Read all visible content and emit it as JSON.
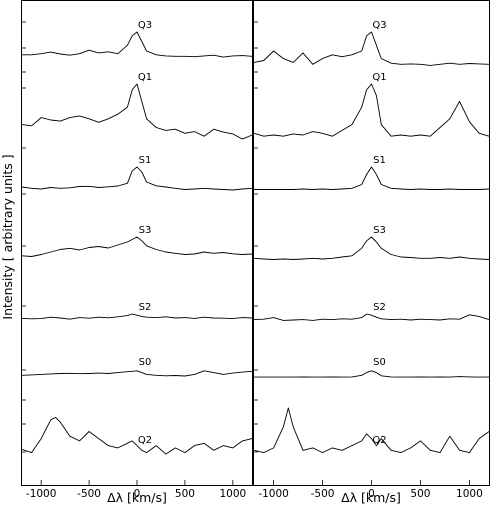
{
  "chart_data": {
    "type": "line",
    "ylabel": "Intensity [ arbitrary units ]",
    "xlim": [
      -1200,
      1200
    ],
    "panels": [
      {
        "xlabel": "Δλ [km/s]",
        "xticks": [
          -1000,
          -500,
          0,
          500,
          1000
        ],
        "series": [
          {
            "name": "Q3",
            "x": [
              -1200,
              -1100,
              -1000,
              -900,
              -800,
              -700,
              -600,
              -500,
              -400,
              -300,
              -200,
              -100,
              -50,
              0,
              50,
              100,
              200,
              300,
              400,
              500,
              600,
              700,
              800,
              900,
              1000,
              1100,
              1200
            ],
            "y": [
              0.4,
              0.4,
              0.43,
              0.47,
              0.42,
              0.39,
              0.43,
              0.52,
              0.45,
              0.48,
              0.43,
              0.65,
              0.9,
              1.0,
              0.75,
              0.5,
              0.4,
              0.37,
              0.36,
              0.36,
              0.35,
              0.37,
              0.39,
              0.34,
              0.37,
              0.38,
              0.36
            ]
          },
          {
            "name": "Q1",
            "x": [
              -1200,
              -1100,
              -1000,
              -900,
              -800,
              -700,
              -600,
              -500,
              -400,
              -300,
              -200,
              -100,
              -50,
              0,
              50,
              100,
              200,
              300,
              400,
              500,
              600,
              700,
              800,
              900,
              1000,
              1100,
              1200
            ],
            "y": [
              0.3,
              0.28,
              0.42,
              0.38,
              0.36,
              0.42,
              0.45,
              0.4,
              0.34,
              0.4,
              0.48,
              0.6,
              0.9,
              1.0,
              0.7,
              0.4,
              0.25,
              0.2,
              0.22,
              0.15,
              0.18,
              0.1,
              0.22,
              0.17,
              0.14,
              0.05,
              0.12
            ]
          },
          {
            "name": "S1",
            "x": [
              -1200,
              -1100,
              -1000,
              -900,
              -800,
              -700,
              -600,
              -500,
              -400,
              -300,
              -200,
              -100,
              -50,
              0,
              50,
              100,
              200,
              300,
              400,
              500,
              600,
              700,
              800,
              900,
              1000,
              1100,
              1200
            ],
            "y": [
              0.2,
              0.15,
              0.12,
              0.18,
              0.15,
              0.17,
              0.22,
              0.23,
              0.18,
              0.21,
              0.24,
              0.35,
              0.85,
              1.0,
              0.8,
              0.4,
              0.25,
              0.2,
              0.15,
              0.1,
              0.12,
              0.15,
              0.12,
              0.1,
              0.08,
              0.12,
              0.15
            ]
          },
          {
            "name": "S3",
            "x": [
              -1200,
              -1100,
              -1000,
              -900,
              -800,
              -700,
              -600,
              -500,
              -400,
              -300,
              -200,
              -100,
              -50,
              0,
              50,
              100,
              200,
              300,
              400,
              500,
              600,
              700,
              800,
              900,
              1000,
              1100,
              1200
            ],
            "y": [
              0.25,
              0.22,
              0.3,
              0.4,
              0.5,
              0.55,
              0.48,
              0.58,
              0.62,
              0.56,
              0.68,
              0.8,
              0.9,
              1.0,
              0.85,
              0.65,
              0.5,
              0.4,
              0.35,
              0.3,
              0.32,
              0.4,
              0.35,
              0.38,
              0.33,
              0.3,
              0.32
            ]
          },
          {
            "name": "S2",
            "x": [
              -1200,
              -1100,
              -1000,
              -900,
              -800,
              -700,
              -600,
              -500,
              -400,
              -300,
              -200,
              -100,
              -50,
              0,
              50,
              100,
              200,
              300,
              400,
              500,
              600,
              700,
              800,
              900,
              1000,
              1100,
              1200
            ],
            "y": [
              0.45,
              0.4,
              0.43,
              0.6,
              0.5,
              0.35,
              0.55,
              0.48,
              0.6,
              0.52,
              0.65,
              0.8,
              1.0,
              0.85,
              0.7,
              0.6,
              0.55,
              0.65,
              0.5,
              0.55,
              0.45,
              0.6,
              0.5,
              0.48,
              0.42,
              0.55,
              0.5
            ]
          },
          {
            "name": "S0",
            "x": [
              -1200,
              -1100,
              -1000,
              -900,
              -800,
              -700,
              -600,
              -500,
              -400,
              -300,
              -200,
              -100,
              -50,
              0,
              50,
              100,
              200,
              300,
              400,
              500,
              600,
              700,
              800,
              900,
              1000,
              1100,
              1200
            ],
            "y": [
              0.3,
              0.35,
              0.4,
              0.45,
              0.5,
              0.52,
              0.48,
              0.5,
              0.55,
              0.5,
              0.6,
              0.7,
              0.75,
              0.8,
              0.6,
              0.4,
              0.3,
              0.25,
              0.28,
              0.22,
              0.4,
              0.8,
              0.6,
              0.4,
              0.55,
              0.65,
              0.75
            ]
          },
          {
            "name": "Q2",
            "x": [
              -1200,
              -1100,
              -1000,
              -900,
              -850,
              -800,
              -700,
              -600,
              -500,
              -400,
              -300,
              -200,
              -100,
              -50,
              0,
              50,
              100,
              200,
              300,
              400,
              500,
              600,
              700,
              800,
              900,
              1000,
              1100,
              1200
            ],
            "y": [
              0.12,
              0.05,
              0.35,
              0.75,
              0.8,
              0.7,
              0.4,
              0.3,
              0.5,
              0.35,
              0.2,
              0.15,
              0.25,
              0.3,
              0.2,
              0.1,
              0.05,
              0.2,
              0.02,
              0.15,
              0.05,
              0.2,
              0.25,
              0.1,
              0.2,
              0.15,
              0.3,
              0.35
            ]
          }
        ]
      },
      {
        "xlabel": "Δλ [km/s]",
        "xticks": [
          -1000,
          -500,
          0,
          500,
          1000
        ],
        "series": [
          {
            "name": "Q3",
            "x": [
              -1200,
              -1100,
              -1000,
              -900,
              -800,
              -700,
              -600,
              -500,
              -400,
              -300,
              -200,
              -100,
              -50,
              0,
              50,
              100,
              200,
              300,
              400,
              500,
              600,
              700,
              800,
              900,
              1000,
              1100,
              1200
            ],
            "y": [
              0.2,
              0.25,
              0.5,
              0.3,
              0.2,
              0.45,
              0.15,
              0.3,
              0.4,
              0.35,
              0.4,
              0.5,
              0.9,
              1.0,
              0.65,
              0.3,
              0.18,
              0.15,
              0.16,
              0.15,
              0.12,
              0.15,
              0.18,
              0.15,
              0.17,
              0.16,
              0.15
            ]
          },
          {
            "name": "Q1",
            "x": [
              -1200,
              -1100,
              -1000,
              -900,
              -800,
              -700,
              -600,
              -500,
              -400,
              -300,
              -200,
              -100,
              -50,
              0,
              50,
              100,
              200,
              300,
              400,
              500,
              600,
              700,
              800,
              900,
              1000,
              1100,
              1200
            ],
            "y": [
              0.15,
              0.1,
              0.12,
              0.1,
              0.14,
              0.12,
              0.18,
              0.15,
              0.1,
              0.2,
              0.3,
              0.6,
              0.9,
              1.0,
              0.8,
              0.3,
              0.1,
              0.12,
              0.1,
              0.12,
              0.1,
              0.25,
              0.4,
              0.7,
              0.35,
              0.15,
              0.1
            ]
          },
          {
            "name": "S1",
            "x": [
              -1200,
              -1100,
              -1000,
              -900,
              -800,
              -700,
              -600,
              -500,
              -400,
              -300,
              -200,
              -100,
              -50,
              0,
              50,
              100,
              200,
              300,
              400,
              500,
              600,
              700,
              800,
              900,
              1000,
              1100,
              1200
            ],
            "y": [
              0.1,
              0.1,
              0.1,
              0.1,
              0.1,
              0.12,
              0.1,
              0.12,
              0.1,
              0.12,
              0.15,
              0.3,
              0.7,
              1.0,
              0.7,
              0.3,
              0.15,
              0.12,
              0.1,
              0.12,
              0.1,
              0.1,
              0.12,
              0.1,
              0.1,
              0.1,
              0.12
            ]
          },
          {
            "name": "S3",
            "x": [
              -1200,
              -1100,
              -1000,
              -900,
              -800,
              -700,
              -600,
              -500,
              -400,
              -300,
              -200,
              -100,
              -50,
              0,
              50,
              100,
              200,
              300,
              400,
              500,
              600,
              700,
              800,
              900,
              1000,
              1100,
              1200
            ],
            "y": [
              0.15,
              0.12,
              0.1,
              0.12,
              0.1,
              0.12,
              0.15,
              0.12,
              0.15,
              0.2,
              0.25,
              0.55,
              0.85,
              1.0,
              0.8,
              0.55,
              0.3,
              0.2,
              0.18,
              0.15,
              0.15,
              0.18,
              0.15,
              0.2,
              0.15,
              0.12,
              0.1
            ]
          },
          {
            "name": "S2",
            "x": [
              -1200,
              -1100,
              -1000,
              -900,
              -800,
              -700,
              -600,
              -500,
              -400,
              -300,
              -200,
              -100,
              -50,
              0,
              50,
              100,
              200,
              300,
              400,
              500,
              600,
              700,
              800,
              900,
              1000,
              1100,
              1200
            ],
            "y": [
              0.3,
              0.35,
              0.55,
              0.2,
              0.25,
              0.3,
              0.2,
              0.35,
              0.3,
              0.4,
              0.35,
              0.55,
              1.0,
              0.85,
              0.6,
              0.4,
              0.3,
              0.35,
              0.25,
              0.35,
              0.3,
              0.25,
              0.4,
              0.35,
              0.9,
              0.7,
              0.3
            ]
          },
          {
            "name": "S0",
            "x": [
              -1200,
              -1100,
              -1000,
              -900,
              -800,
              -700,
              -600,
              -500,
              -400,
              -300,
              -200,
              -100,
              -50,
              0,
              50,
              100,
              200,
              300,
              400,
              500,
              600,
              700,
              800,
              900,
              1000,
              1100,
              1200
            ],
            "y": [
              0.1,
              0.1,
              0.1,
              0.1,
              0.1,
              0.12,
              0.1,
              0.1,
              0.12,
              0.1,
              0.12,
              0.3,
              0.6,
              0.8,
              0.6,
              0.25,
              0.12,
              0.1,
              0.1,
              0.12,
              0.1,
              0.12,
              0.1,
              0.15,
              0.12,
              0.1,
              0.1
            ]
          },
          {
            "name": "Q2",
            "x": [
              -1200,
              -1100,
              -1000,
              -900,
              -850,
              -800,
              -700,
              -600,
              -500,
              -400,
              -300,
              -200,
              -100,
              -50,
              0,
              50,
              100,
              200,
              300,
              400,
              500,
              600,
              700,
              800,
              900,
              1000,
              1100,
              1200
            ],
            "y": [
              0.1,
              0.05,
              0.15,
              0.6,
              1.0,
              0.6,
              0.1,
              0.15,
              0.05,
              0.15,
              0.1,
              0.2,
              0.3,
              0.45,
              0.35,
              0.2,
              0.35,
              0.1,
              0.05,
              0.15,
              0.3,
              0.1,
              0.05,
              0.4,
              0.1,
              0.05,
              0.35,
              0.5
            ]
          }
        ]
      }
    ]
  }
}
